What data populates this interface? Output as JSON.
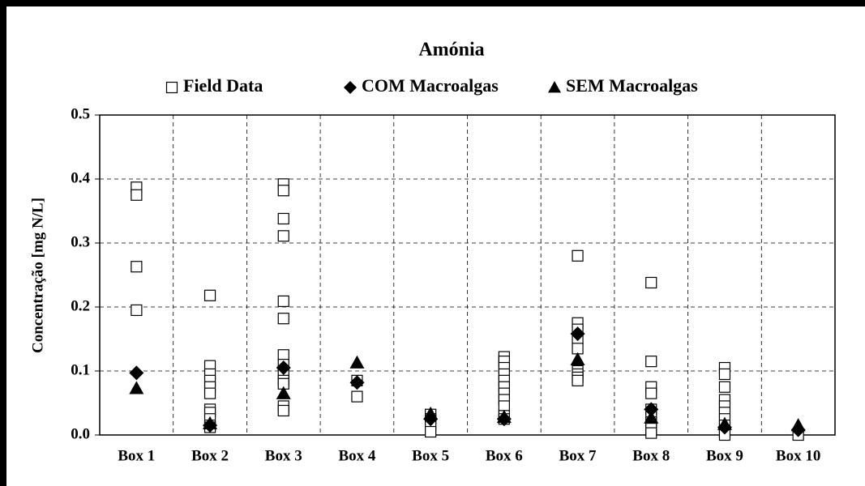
{
  "chart_data": {
    "type": "scatter",
    "title": "Amónia",
    "y_label": "Concentração [mg N/L]",
    "categories": [
      "Box 1",
      "Box 2",
      "Box 3",
      "Box 4",
      "Box 5",
      "Box 6",
      "Box 7",
      "Box 8",
      "Box 9",
      "Box 10"
    ],
    "series": [
      {
        "name": "Field Data",
        "color": "#000000",
        "marker": "square",
        "values": [
          [
            0.387,
            0.375,
            0.263,
            0.195
          ],
          [
            0.218,
            0.108,
            0.095,
            0.085,
            0.075,
            0.065,
            0.04,
            0.035,
            0.025,
            0.015,
            0.012
          ],
          [
            0.392,
            0.382,
            0.338,
            0.311,
            0.209,
            0.182,
            0.125,
            0.11,
            0.095,
            0.085,
            0.08,
            0.045,
            0.038
          ],
          [
            0.085,
            0.06
          ],
          [
            0.032,
            0.025,
            0.015,
            0.005
          ],
          [
            0.122,
            0.115,
            0.105,
            0.095,
            0.085,
            0.075,
            0.065,
            0.055,
            0.045,
            0.03,
            0.025
          ],
          [
            0.28,
            0.175,
            0.165,
            0.15,
            0.135,
            0.1,
            0.095,
            0.09,
            0.085
          ],
          [
            0.238,
            0.115,
            0.075,
            0.065,
            0.04,
            0.03,
            0.02,
            0.01,
            0.003
          ],
          [
            0.105,
            0.095,
            0.075,
            0.055,
            0.045,
            0.035,
            0.025,
            0.015,
            0.005,
            0.0
          ],
          [
            0.0
          ]
        ]
      },
      {
        "name": "COM Macroalgas",
        "color": "#000000",
        "marker": "diamond",
        "values": [
          0.097,
          0.015,
          0.105,
          0.082,
          0.025,
          0.025,
          0.158,
          0.04,
          0.012,
          0.008
        ]
      },
      {
        "name": "SEM Macroalgas",
        "color": "#000000",
        "marker": "triangle",
        "values": [
          0.073,
          0.018,
          0.065,
          0.113,
          0.033,
          0.028,
          0.118,
          0.027,
          0.017,
          0.015
        ]
      }
    ],
    "ylim": [
      0,
      0.5
    ],
    "yticks": [
      {
        "value": 0,
        "label": "0.0"
      },
      0.1,
      0.2,
      0.3,
      0.4,
      0.5
    ],
    "grid": true
  }
}
